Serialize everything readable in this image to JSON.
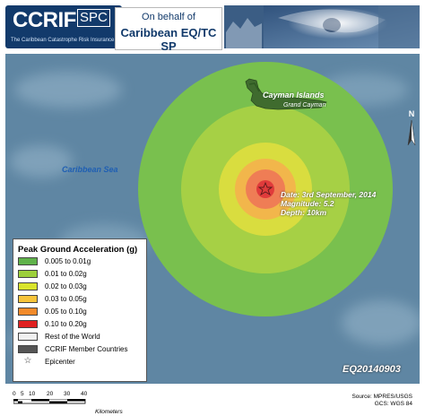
{
  "header": {
    "logo_main": "CCRIF",
    "logo_spc": "SPC",
    "logo_tagline": "The Caribbean Catastrophe Risk Insurance Facility",
    "on_behalf": "On behalf of",
    "agency": "Caribbean EQ/TC SP"
  },
  "map": {
    "sea_label": "Caribbean Sea",
    "island_label": "Cayman Islands",
    "subisland_label": "Grand Cayman",
    "event_date": "Date: 3rd September, 2014",
    "event_magnitude": "Magnitude: 5.2",
    "event_depth": "Depth: 10km",
    "event_id": "EQ20140903",
    "north_label": "N",
    "colors": {
      "sea": "#5f86a3",
      "pga_0005_001": "#79c04e",
      "pga_001_002": "#a6d045",
      "pga_002_003": "#d9dd3f",
      "pga_003_005": "#f2b64b",
      "pga_005_010": "#ef7d55",
      "pga_010_020": "#e03b3b"
    }
  },
  "legend": {
    "title": "Peak Ground Acceleration (g)",
    "items": [
      {
        "label": "0.005 to 0.01g",
        "color": "#5fb24a"
      },
      {
        "label": "0.01 to 0.02g",
        "color": "#9dd03a"
      },
      {
        "label": "0.02 to 0.03g",
        "color": "#d9e42c"
      },
      {
        "label": "0.03 to 0.05g",
        "color": "#f7c43a"
      },
      {
        "label": "0.05 to 0.10g",
        "color": "#f28a2a"
      },
      {
        "label": "0.10 to 0.20g",
        "color": "#e02020"
      },
      {
        "label": "Rest of the World",
        "color": "#f0f0f0"
      },
      {
        "label": "CCRIF Member Countries",
        "color": "#555555"
      }
    ],
    "epicenter_label": "Epicenter"
  },
  "footer": {
    "scale_ticks": [
      "0",
      "5",
      "10",
      "20",
      "30",
      "40"
    ],
    "scale_unit": "Kilometers",
    "source": "Source: MPRES/USGS",
    "gcs": "GCS: WGS 84"
  }
}
